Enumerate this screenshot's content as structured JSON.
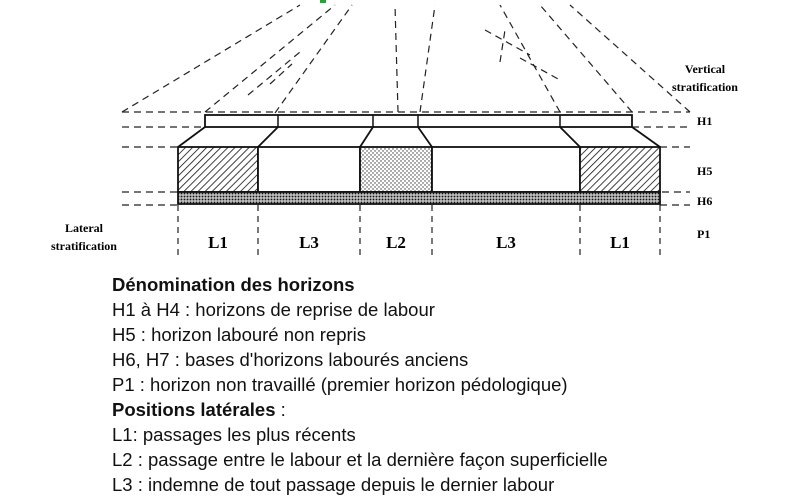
{
  "diagram": {
    "labels": {
      "vertical_line1": "Vertical",
      "vertical_line2": "stratification",
      "lateral_line1": "Lateral",
      "lateral_line2": "stratification"
    },
    "horizons": [
      "H1",
      "H5",
      "H6",
      "P1"
    ],
    "zones": [
      "L1",
      "L3",
      "L2",
      "L3",
      "L1"
    ]
  },
  "legend": {
    "horizons_title": "Dénomination des horizons",
    "horizons_items": [
      "H1 à H4 : horizons de reprise de labour",
      "H5 : horizon labouré non repris",
      "H6, H7 : bases d'horizons labourés anciens",
      "P1 : horizon non travaillé (premier horizon pédologique)"
    ],
    "positions_title": "Positions latérales",
    "positions_title_suffix": " :",
    "positions_items": [
      "L1: passages les plus récents",
      "L2 : passage entre le labour et la dernière façon superficielle",
      "L3 : indemne de tout passage depuis le dernier labour"
    ]
  }
}
